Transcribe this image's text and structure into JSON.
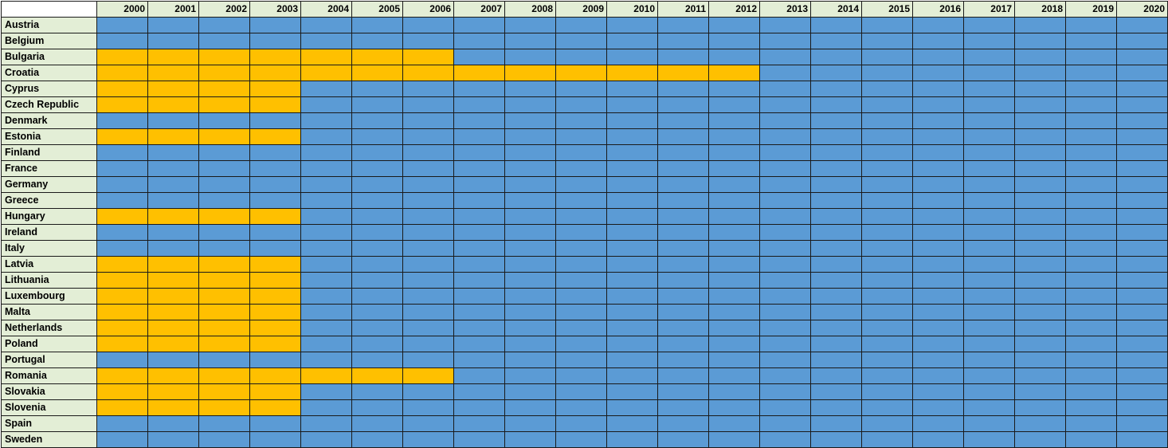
{
  "colors": {
    "member": "#5b9bd5",
    "non_member": "#ffc000",
    "label_background": "#e3eed6",
    "grid_line": "#1a1a1a"
  },
  "chart_data": {
    "type": "heatmap",
    "years": [
      "2000",
      "2001",
      "2002",
      "2003",
      "2004",
      "2005",
      "2006",
      "2007",
      "2008",
      "2009",
      "2010",
      "2011",
      "2012",
      "2013",
      "2014",
      "2015",
      "2016",
      "2017",
      "2018",
      "2019",
      "2020"
    ],
    "countries": [
      "Austria",
      "Belgium",
      "Bulgaria",
      "Croatia",
      "Cyprus",
      "Czech Republic",
      "Denmark",
      "Estonia",
      "Finland",
      "France",
      "Germany",
      "Greece",
      "Hungary",
      "Ireland",
      "Italy",
      "Latvia",
      "Lithuania",
      "Luxembourg",
      "Malta",
      "Netherlands",
      "Poland",
      "Portugal",
      "Romania",
      "Slovakia",
      "Slovenia",
      "Spain",
      "Sweden"
    ],
    "yellow_years_count": [
      0,
      0,
      7,
      13,
      4,
      4,
      0,
      4,
      0,
      0,
      0,
      0,
      4,
      0,
      0,
      4,
      4,
      4,
      4,
      4,
      4,
      0,
      7,
      4,
      4,
      0,
      0
    ],
    "categories": {
      "blue": "#5b9bd5",
      "yellow": "#ffc000"
    }
  }
}
